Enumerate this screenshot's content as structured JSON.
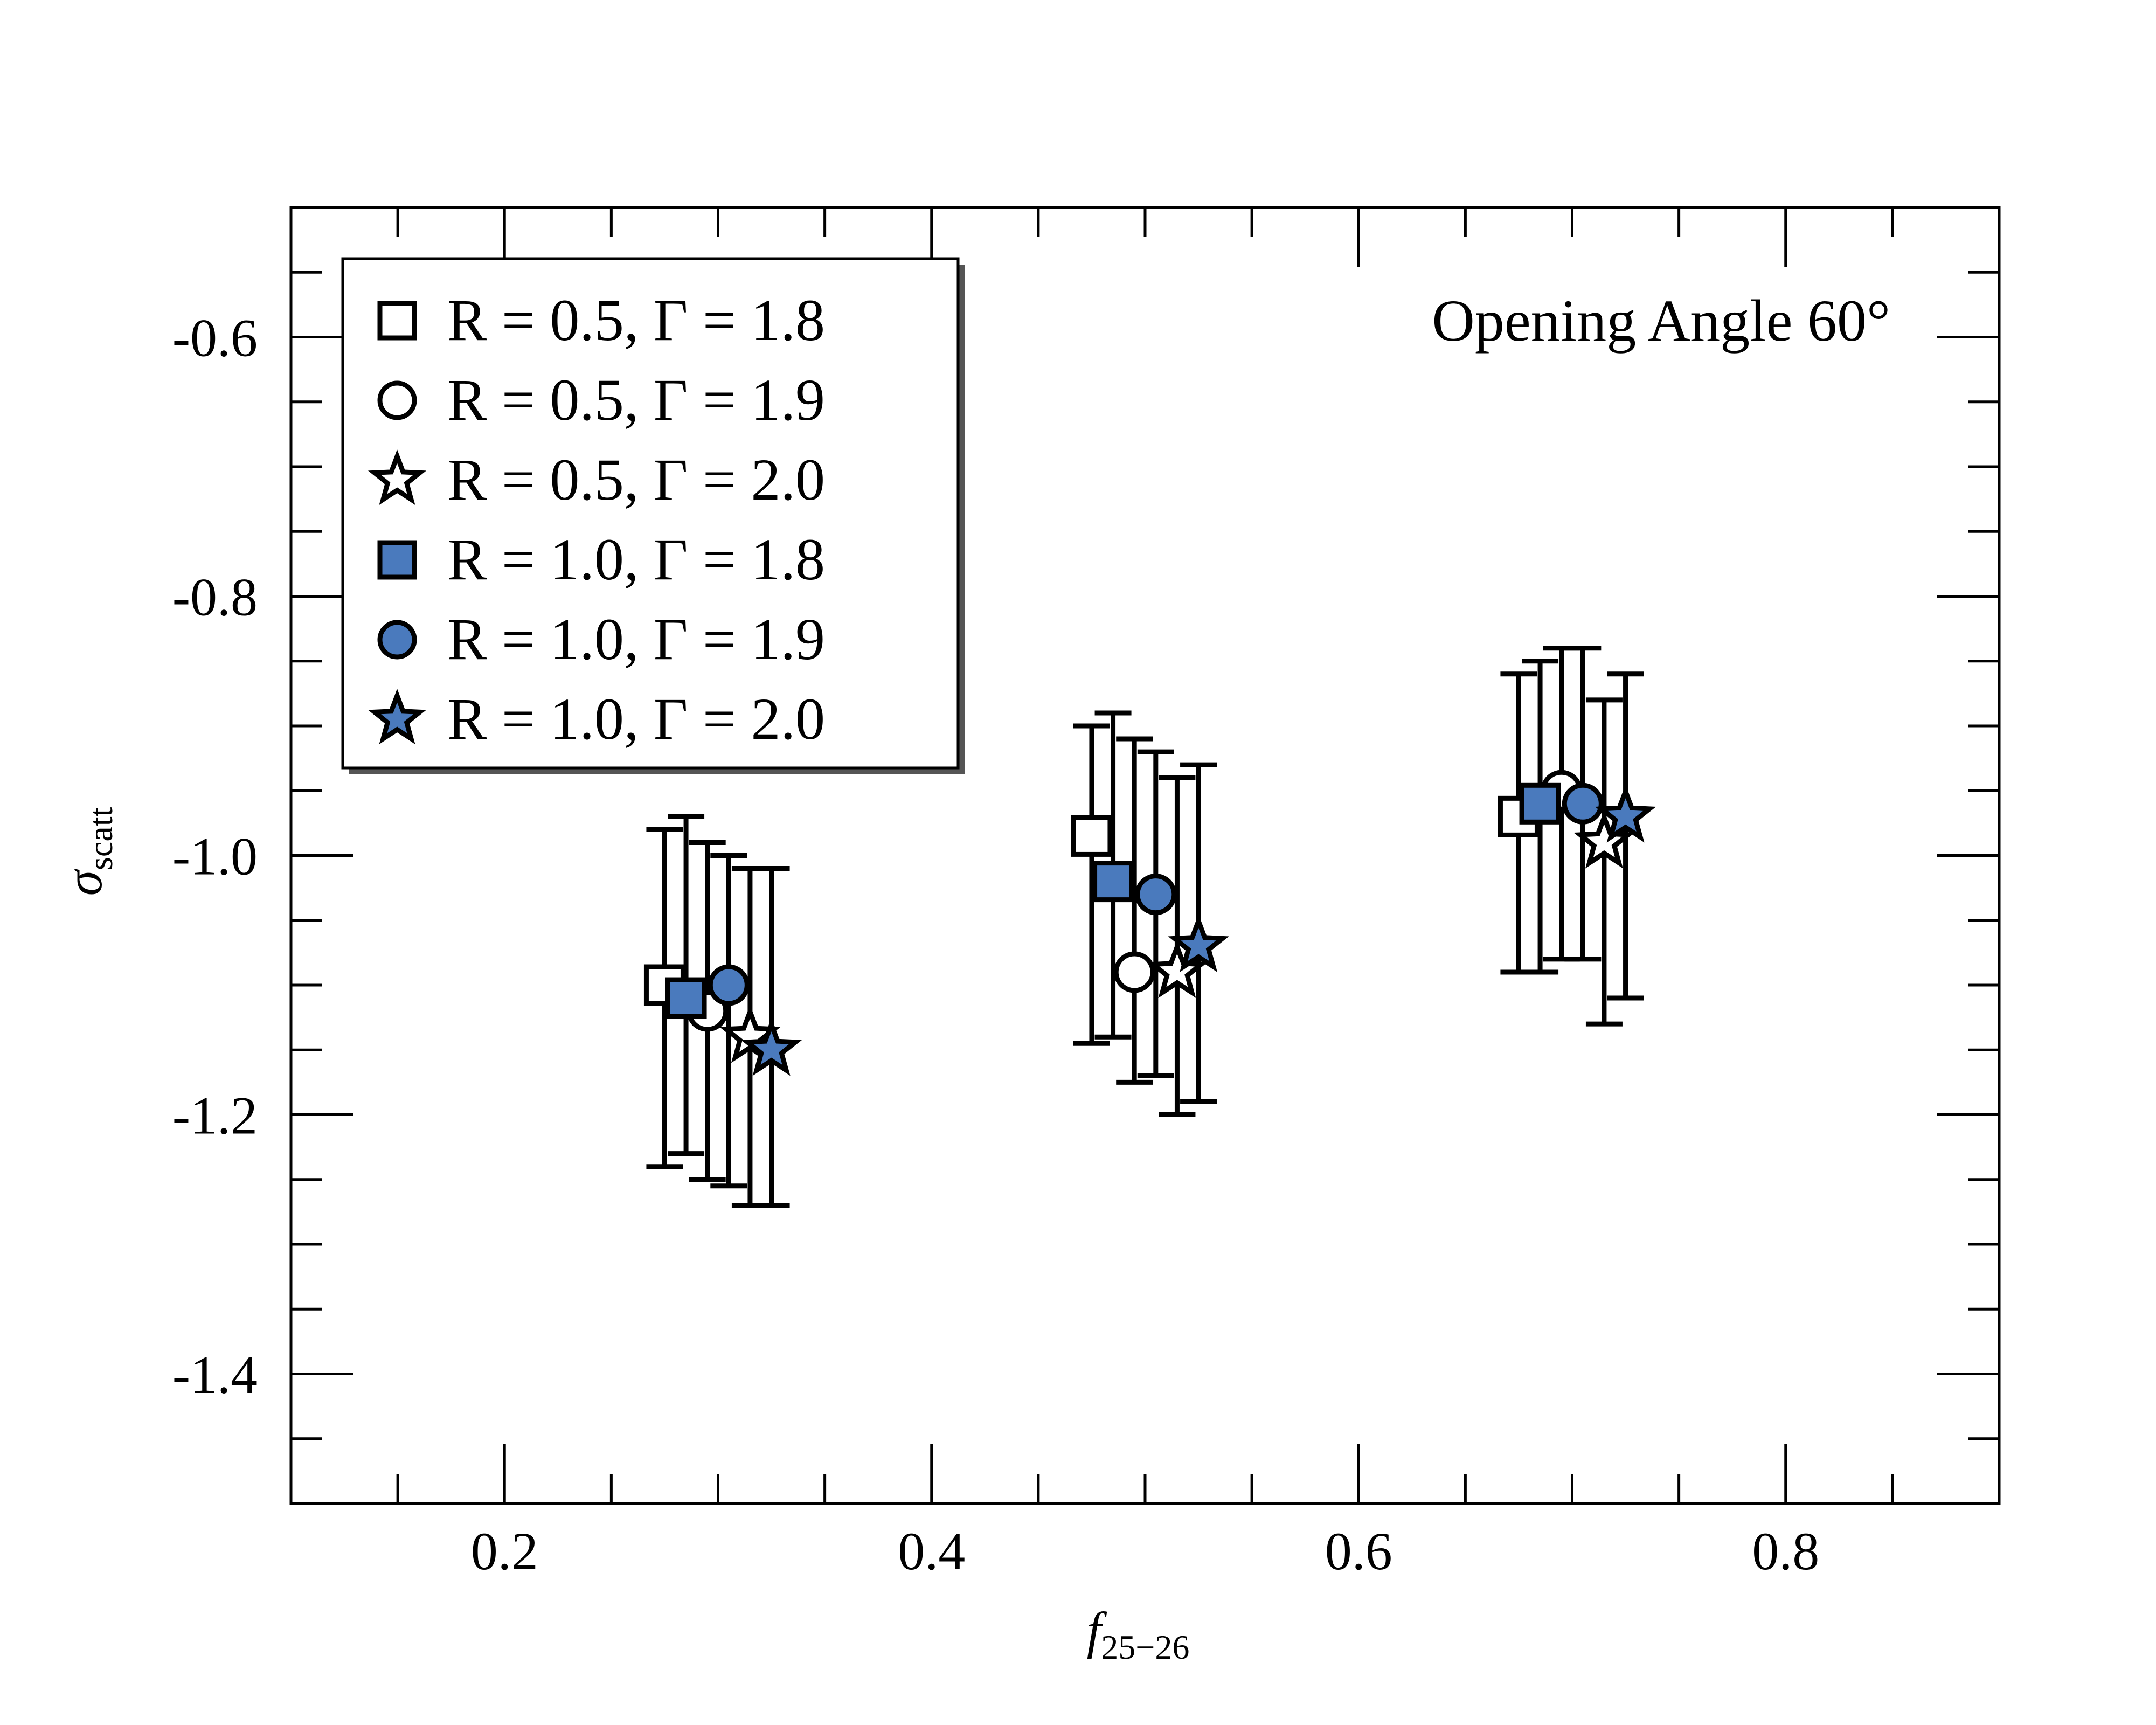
{
  "chart_data": {
    "type": "scatter",
    "annotation": "Opening Angle 60°",
    "xlabel_main": "f",
    "xlabel_sub": "25−26",
    "ylabel_main": "σ",
    "ylabel_sub": "scatt",
    "xlim": [
      0.1,
      0.9
    ],
    "ylim": [
      -1.5,
      -0.5
    ],
    "x_ticks_major": [
      0.2,
      0.4,
      0.6,
      0.8
    ],
    "x_tick_labels": [
      "0.2",
      "0.4",
      "0.6",
      "0.8"
    ],
    "y_ticks_major": [
      -0.6,
      -0.8,
      -1.0,
      -1.2,
      -1.4
    ],
    "y_tick_labels": [
      "-0.6",
      "-0.8",
      "-1.0",
      "-1.2",
      "-1.4"
    ],
    "grid": false,
    "legend_position": "top-left",
    "colors": {
      "filled": "#4a7abd",
      "open": "#ffffff",
      "stroke": "#000000"
    },
    "series": [
      {
        "name": "R = 0.5, Γ = 1.8",
        "marker": "square",
        "filled": false,
        "points": [
          {
            "x": 0.275,
            "y": -1.1,
            "ylo": -1.24,
            "yhi": -0.98
          },
          {
            "x": 0.475,
            "y": -0.985,
            "ylo": -1.145,
            "yhi": -0.9
          },
          {
            "x": 0.675,
            "y": -0.97,
            "ylo": -1.09,
            "yhi": -0.86
          }
        ]
      },
      {
        "name": "R = 0.5, Γ = 1.9",
        "marker": "circle",
        "filled": false,
        "points": [
          {
            "x": 0.295,
            "y": -1.12,
            "ylo": -1.25,
            "yhi": -0.99
          },
          {
            "x": 0.495,
            "y": -1.09,
            "ylo": -1.175,
            "yhi": -0.91
          },
          {
            "x": 0.695,
            "y": -0.95,
            "ylo": -1.08,
            "yhi": -0.84
          }
        ]
      },
      {
        "name": "R = 0.5, Γ = 2.0",
        "marker": "star",
        "filled": false,
        "points": [
          {
            "x": 0.315,
            "y": -1.14,
            "ylo": -1.27,
            "yhi": -1.01
          },
          {
            "x": 0.515,
            "y": -1.09,
            "ylo": -1.2,
            "yhi": -0.94
          },
          {
            "x": 0.715,
            "y": -0.99,
            "ylo": -1.13,
            "yhi": -0.88
          }
        ]
      },
      {
        "name": "R = 1.0, Γ = 1.8",
        "marker": "square",
        "filled": true,
        "points": [
          {
            "x": 0.285,
            "y": -1.11,
            "ylo": -1.23,
            "yhi": -0.97
          },
          {
            "x": 0.485,
            "y": -1.02,
            "ylo": -1.14,
            "yhi": -0.89
          },
          {
            "x": 0.685,
            "y": -0.96,
            "ylo": -1.09,
            "yhi": -0.85
          }
        ]
      },
      {
        "name": "R = 1.0, Γ = 1.9",
        "marker": "circle",
        "filled": true,
        "points": [
          {
            "x": 0.305,
            "y": -1.1,
            "ylo": -1.255,
            "yhi": -1.0
          },
          {
            "x": 0.505,
            "y": -1.03,
            "ylo": -1.17,
            "yhi": -0.92
          },
          {
            "x": 0.705,
            "y": -0.96,
            "ylo": -1.08,
            "yhi": -0.84
          }
        ]
      },
      {
        "name": "R = 1.0, Γ = 2.0",
        "marker": "star",
        "filled": true,
        "points": [
          {
            "x": 0.325,
            "y": -1.15,
            "ylo": -1.27,
            "yhi": -1.01
          },
          {
            "x": 0.525,
            "y": -1.07,
            "ylo": -1.19,
            "yhi": -0.93
          },
          {
            "x": 0.725,
            "y": -0.97,
            "ylo": -1.11,
            "yhi": -0.86
          }
        ]
      }
    ]
  }
}
